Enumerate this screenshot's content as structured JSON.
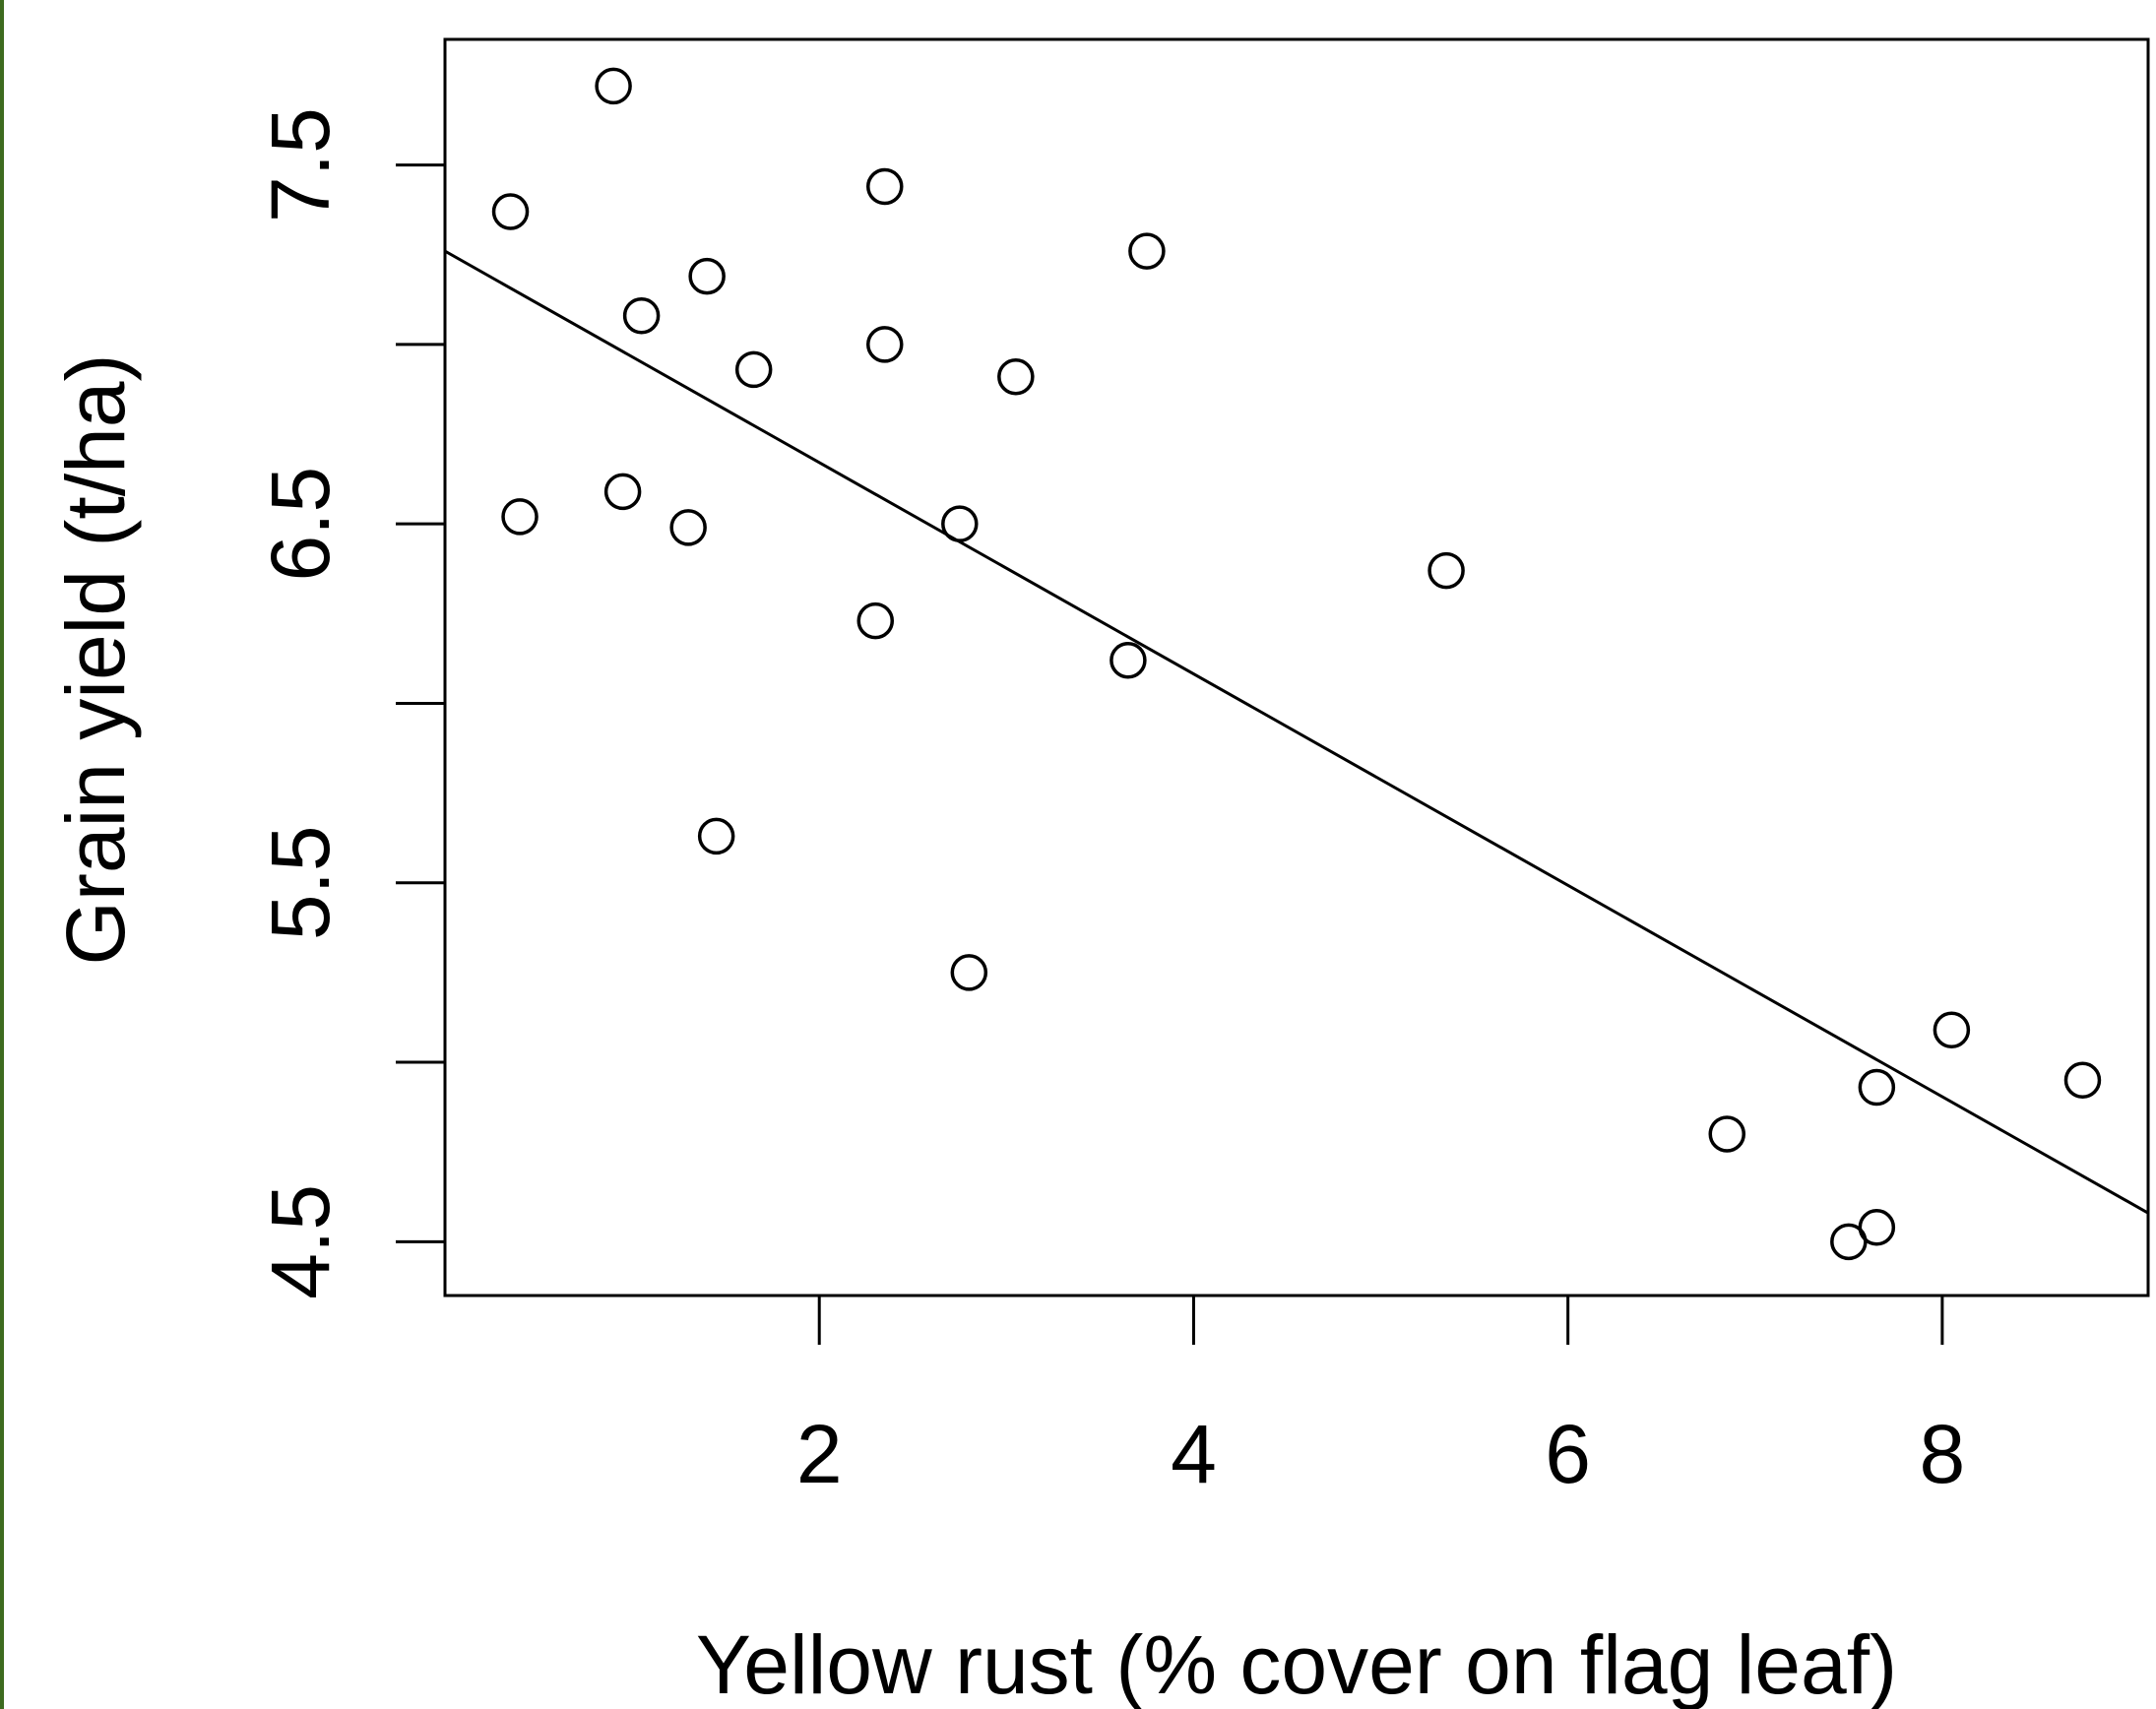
{
  "chart_data": {
    "type": "scatter",
    "title": "",
    "xlabel": "Yellow rust (% cover on flag leaf)",
    "ylabel": "Grain yield (t/ha)",
    "xlim": [
      0.0,
      9.1
    ],
    "ylim": [
      4.35,
      7.85
    ],
    "x_ticks": [
      2,
      4,
      6,
      8
    ],
    "x_tick_labels": [
      "2",
      "4",
      "6",
      "8"
    ],
    "y_ticks": [
      4.5,
      5.0,
      5.5,
      6.0,
      6.5,
      7.0,
      7.5
    ],
    "y_tick_labels": [
      "4.5",
      "",
      "5.5",
      "",
      "6.5",
      "",
      "7.5"
    ],
    "grid": false,
    "marker": "o",
    "points": [
      {
        "x": 0.35,
        "y": 7.37
      },
      {
        "x": 0.4,
        "y": 6.52
      },
      {
        "x": 0.9,
        "y": 7.72
      },
      {
        "x": 0.95,
        "y": 6.59
      },
      {
        "x": 1.05,
        "y": 7.08
      },
      {
        "x": 1.3,
        "y": 6.49
      },
      {
        "x": 1.4,
        "y": 7.19
      },
      {
        "x": 1.45,
        "y": 5.63
      },
      {
        "x": 1.65,
        "y": 6.93
      },
      {
        "x": 2.3,
        "y": 6.23
      },
      {
        "x": 2.35,
        "y": 7.44
      },
      {
        "x": 2.35,
        "y": 7.0
      },
      {
        "x": 2.75,
        "y": 6.5
      },
      {
        "x": 2.8,
        "y": 5.25
      },
      {
        "x": 3.05,
        "y": 6.91
      },
      {
        "x": 3.65,
        "y": 6.12
      },
      {
        "x": 3.75,
        "y": 7.26
      },
      {
        "x": 5.35,
        "y": 6.37
      },
      {
        "x": 6.85,
        "y": 4.8
      },
      {
        "x": 7.5,
        "y": 4.5
      },
      {
        "x": 7.65,
        "y": 4.54
      },
      {
        "x": 7.65,
        "y": 4.93
      },
      {
        "x": 8.05,
        "y": 5.09
      },
      {
        "x": 8.75,
        "y": 4.95
      }
    ],
    "regression_line": {
      "x": [
        0.0,
        9.1
      ],
      "y": [
        7.26,
        4.58
      ]
    },
    "colors": {
      "axes": "#000000",
      "markers": "#000000",
      "background": "#ffffff",
      "left_strip": "#3d6b1f"
    }
  }
}
